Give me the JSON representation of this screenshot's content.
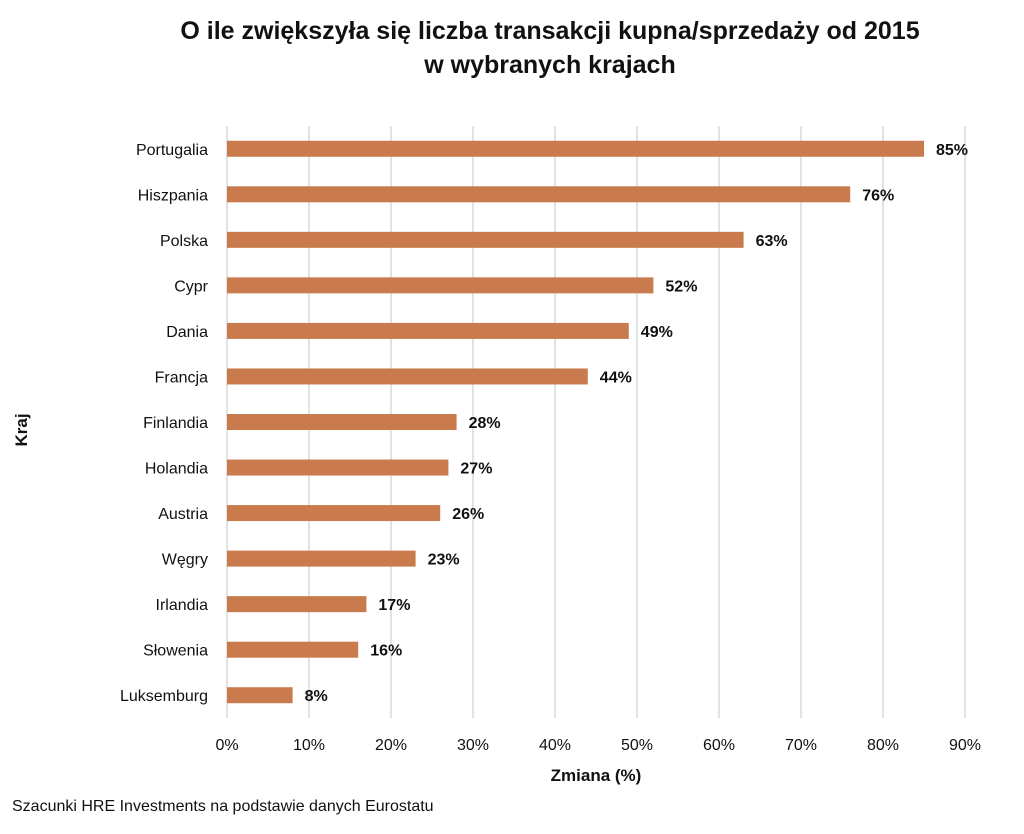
{
  "chart_data": {
    "type": "bar",
    "orientation": "horizontal",
    "title_lines": [
      "O ile zwiększyła się liczba transakcji kupna/sprzedaży od 2015",
      "w wybranych krajach"
    ],
    "xlabel": "Zmiana (%)",
    "ylabel": "Kraj",
    "categories": [
      "Portugalia",
      "Hiszpania",
      "Polska",
      "Cypr",
      "Dania",
      "Francja",
      "Finlandia",
      "Holandia",
      "Austria",
      "Węgry",
      "Irlandia",
      "Słowenia",
      "Luksemburg"
    ],
    "values": [
      85,
      76,
      63,
      52,
      49,
      44,
      28,
      27,
      26,
      23,
      17,
      16,
      8
    ],
    "data_labels": [
      "85%",
      "76%",
      "63%",
      "52%",
      "49%",
      "44%",
      "28%",
      "27%",
      "26%",
      "23%",
      "17%",
      "16%",
      "8%"
    ],
    "xlim": [
      0,
      90
    ],
    "xticks": [
      0,
      10,
      20,
      30,
      40,
      50,
      60,
      70,
      80,
      90
    ],
    "xtick_labels": [
      "0%",
      "10%",
      "20%",
      "30%",
      "40%",
      "50%",
      "60%",
      "70%",
      "80%",
      "90%"
    ],
    "grid": true,
    "bar_color": "#c97b4e",
    "grid_color": "#d9d9d9"
  },
  "footnote": "Szacunki HRE Investments na podstawie danych Eurostatu"
}
